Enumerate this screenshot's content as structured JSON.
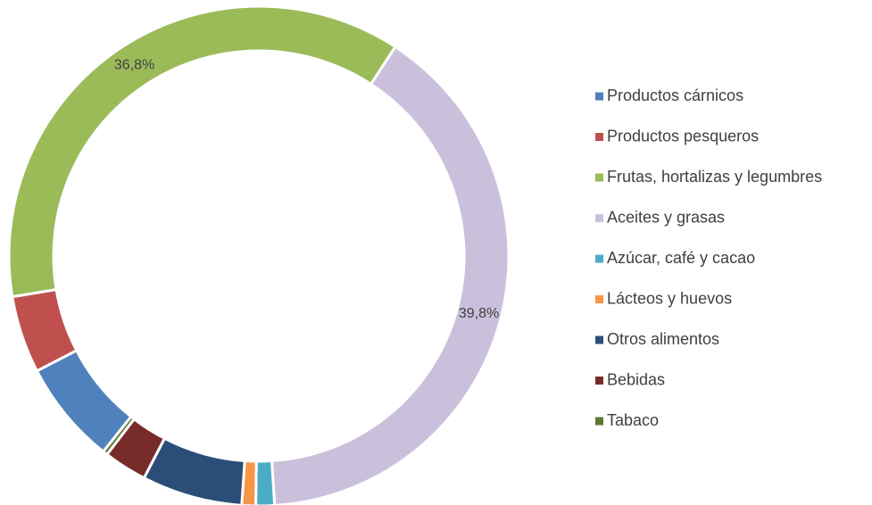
{
  "chart_data": {
    "type": "donut",
    "categories": [
      "Productos cárnicos",
      "Productos pesqueros",
      "Frutas, hortalizas y legumbres",
      "Aceites y grasas",
      "Azúcar, café y cacao",
      "Lácteos y huevos",
      "Otros alimentos",
      "Bebidas",
      "Tabaco"
    ],
    "values": [
      6.7,
      5.0,
      36.8,
      39.8,
      1.2,
      0.9,
      6.5,
      2.8,
      0.3
    ],
    "value_labels": [
      null,
      null,
      "36,8%",
      "39,8%",
      null,
      null,
      null,
      null,
      null
    ],
    "colors": [
      "#4f81bd",
      "#c0504d",
      "#9bbb59",
      "#cbc0dc",
      "#4bacc6",
      "#f79646",
      "#2c4d77",
      "#772c2a",
      "#5f7530"
    ],
    "legend": "right"
  }
}
